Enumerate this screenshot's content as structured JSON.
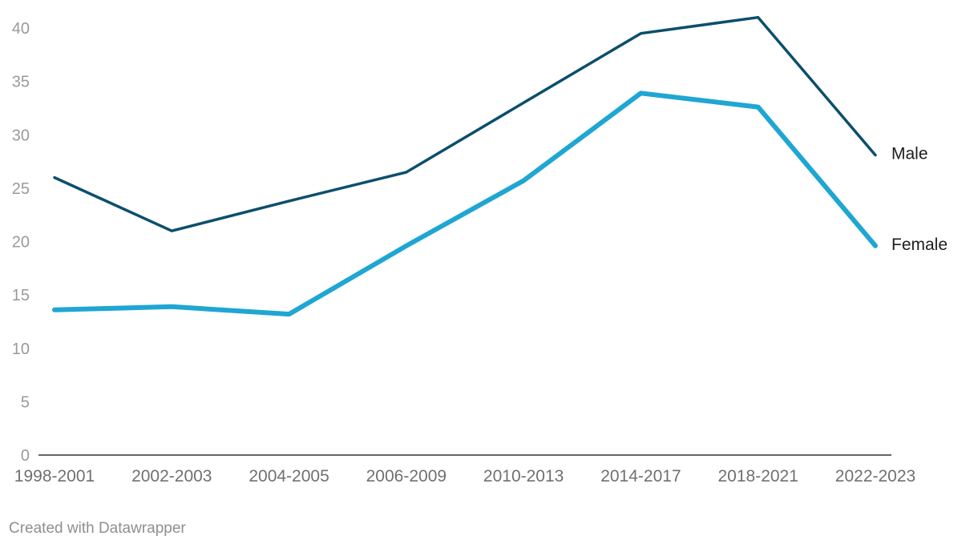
{
  "chart_data": {
    "type": "line",
    "categories": [
      "1998-2001",
      "2002-2003",
      "2004-2005",
      "2006-2009",
      "2010-2013",
      "2014-2017",
      "2018-2021",
      "2022-2023"
    ],
    "series": [
      {
        "name": "Male",
        "values": [
          26.0,
          21.0,
          23.8,
          26.5,
          33.0,
          39.5,
          41.0,
          28.1
        ],
        "color": "#0b4f6c"
      },
      {
        "name": "Female",
        "values": [
          13.6,
          13.9,
          13.2,
          19.6,
          25.7,
          33.9,
          32.6,
          19.6
        ],
        "color": "#1fa6d2"
      }
    ],
    "title": "",
    "xlabel": "",
    "ylabel": "",
    "ylim": [
      0,
      40
    ],
    "yticks": [
      0,
      5,
      10,
      15,
      20,
      25,
      30,
      35,
      40
    ],
    "grid": false,
    "legend": "direct-labels-right"
  },
  "footer": {
    "credit": "Created with Datawrapper"
  }
}
